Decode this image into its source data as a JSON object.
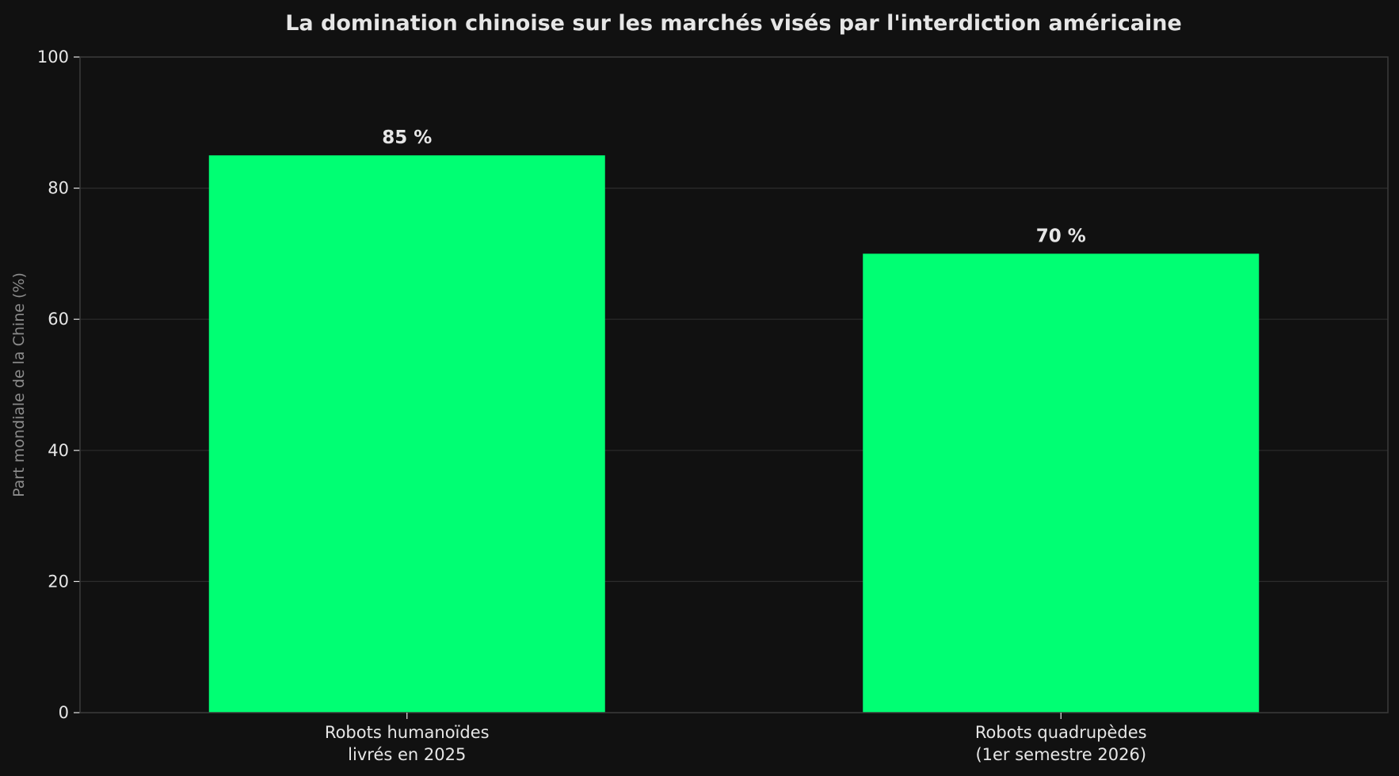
{
  "chart_data": {
    "type": "bar",
    "title": "La domination chinoise sur les marchés visés par l'interdiction américaine",
    "xlabel": "",
    "ylabel": "Part mondiale de la Chine (%)",
    "categories": [
      [
        "Robots humanoïdes",
        "livrés en 2025"
      ],
      [
        "Robots quadrupèdes",
        "(1er semestre 2026)"
      ]
    ],
    "values": [
      85,
      70
    ],
    "data_labels": [
      "85 %",
      "70 %"
    ],
    "ylim": [
      0,
      100
    ],
    "yticks": [
      0,
      20,
      40,
      60,
      80,
      100
    ],
    "grid": "horizontal",
    "legend": "none"
  },
  "colors": {
    "background": "#111111",
    "bar": "#00ff73",
    "grid": "#2c2c2c",
    "axis": "#3a3a3a",
    "text": "#e6e6e6",
    "muted_text": "#8c8c8c"
  }
}
